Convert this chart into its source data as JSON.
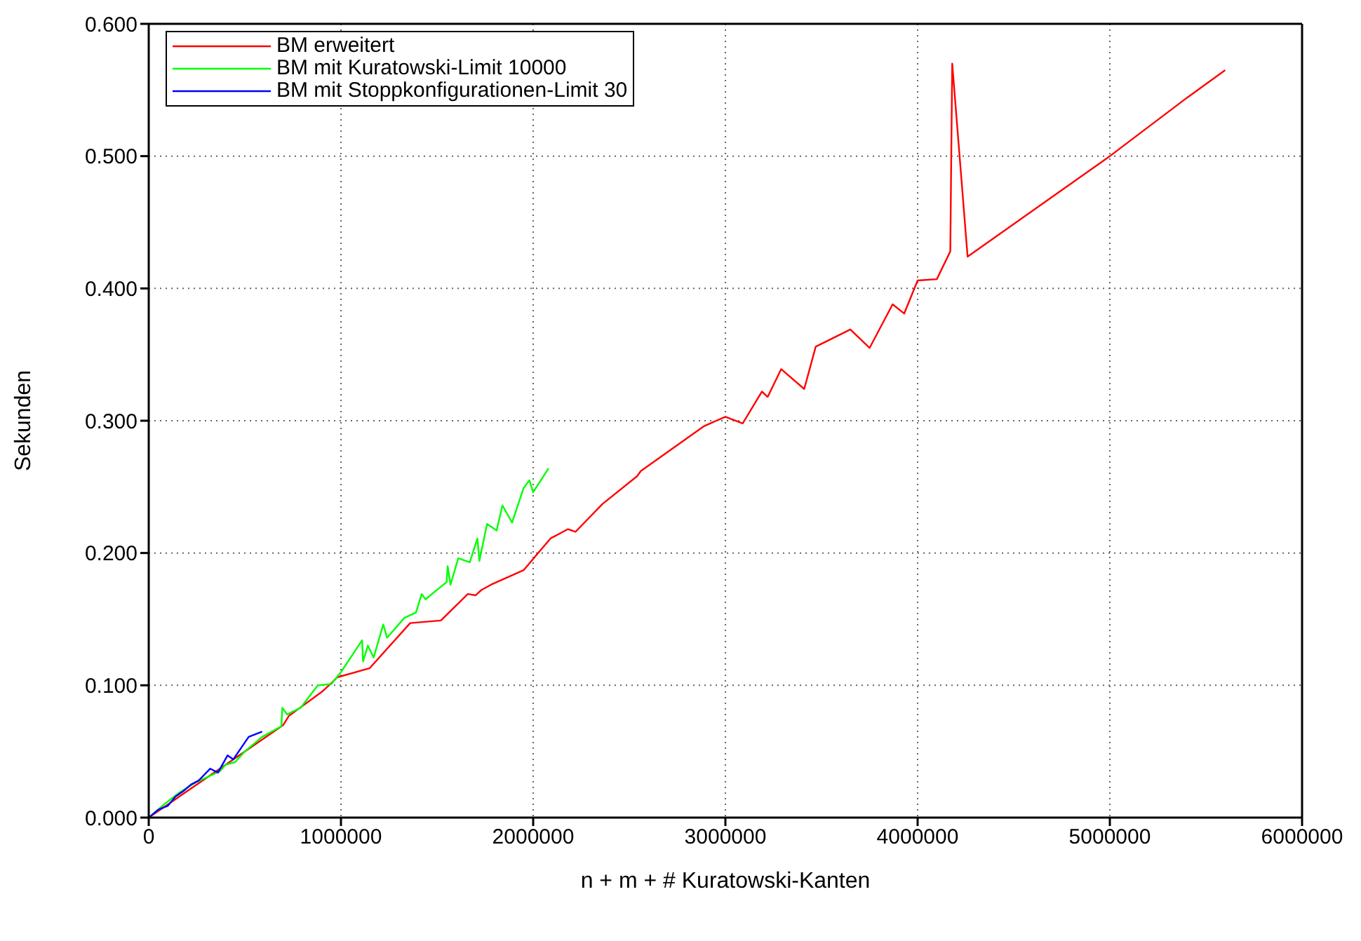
{
  "chart_data": {
    "type": "line",
    "xlabel": "n + m + # Kuratowski-Kanten",
    "ylabel": "Sekunden",
    "xlim": [
      0,
      6000000
    ],
    "xticks": [
      0,
      1000000,
      2000000,
      3000000,
      4000000,
      5000000,
      6000000
    ],
    "ylim": [
      0,
      0.6
    ],
    "yticks": [
      {
        "value": 0,
        "label": "0.000"
      },
      {
        "value": 0.1,
        "label": "0.100"
      },
      {
        "value": 0.2,
        "label": "0.200"
      },
      {
        "value": 0.3,
        "label": "0.300"
      },
      {
        "value": 0.4,
        "label": "0.400"
      },
      {
        "value": 0.5,
        "label": "0.500"
      },
      {
        "value": 0.6,
        "label": "0.600"
      }
    ],
    "grid": true,
    "legend": "top left",
    "marker": "none",
    "line_style": "solid",
    "series": [
      {
        "name": "BM erweitert",
        "color": "#ff0000",
        "x": [
          0,
          150000,
          300000,
          500000,
          700000,
          730000,
          900000,
          960000,
          980000,
          1150000,
          1360000,
          1520000,
          1660000,
          1700000,
          1730000,
          1780000,
          1950000,
          2090000,
          2180000,
          2220000,
          2360000,
          2540000,
          2560000,
          2890000,
          3000000,
          3090000,
          3190000,
          3220000,
          3290000,
          3410000,
          3470000,
          3650000,
          3750000,
          3870000,
          3930000,
          4000000,
          4100000,
          4170000,
          4180000,
          4260000,
          5000000,
          5400000,
          5600000
        ],
        "values": [
          0,
          0.015,
          0.03,
          0.05,
          0.07,
          0.077,
          0.095,
          0.103,
          0.106,
          0.113,
          0.147,
          0.149,
          0.169,
          0.168,
          0.172,
          0.176,
          0.187,
          0.211,
          0.218,
          0.216,
          0.237,
          0.258,
          0.262,
          0.296,
          0.303,
          0.298,
          0.322,
          0.318,
          0.339,
          0.324,
          0.356,
          0.369,
          0.355,
          0.388,
          0.381,
          0.406,
          0.407,
          0.428,
          0.57,
          0.424,
          0.5,
          0.544,
          0.565
        ]
      },
      {
        "name": "BM mit Kuratowski-Limit 10000",
        "color": "#00ff00",
        "x": [
          0,
          80000,
          160000,
          250000,
          370000,
          400000,
          450000,
          500000,
          590000,
          690000,
          695000,
          720000,
          790000,
          880000,
          950000,
          1000000,
          1110000,
          1115000,
          1140000,
          1170000,
          1220000,
          1240000,
          1330000,
          1390000,
          1420000,
          1440000,
          1490000,
          1550000,
          1555000,
          1570000,
          1610000,
          1670000,
          1710000,
          1720000,
          1760000,
          1810000,
          1840000,
          1890000,
          1950000,
          1980000,
          2000000,
          2080000
        ],
        "values": [
          0,
          0.01,
          0.019,
          0.027,
          0.035,
          0.04,
          0.042,
          0.05,
          0.061,
          0.069,
          0.083,
          0.078,
          0.083,
          0.1,
          0.101,
          0.11,
          0.134,
          0.118,
          0.13,
          0.121,
          0.146,
          0.136,
          0.151,
          0.155,
          0.169,
          0.165,
          0.171,
          0.178,
          0.19,
          0.176,
          0.196,
          0.193,
          0.211,
          0.194,
          0.222,
          0.217,
          0.236,
          0.223,
          0.249,
          0.255,
          0.246,
          0.264
        ]
      },
      {
        "name": "BM mit Stoppkonfigurationen-Limit 30",
        "color": "#0000ff",
        "x": [
          0,
          50000,
          100000,
          140000,
          180000,
          220000,
          260000,
          320000,
          360000,
          410000,
          440000,
          520000,
          590000
        ],
        "values": [
          0,
          0.006,
          0.009,
          0.016,
          0.02,
          0.025,
          0.028,
          0.037,
          0.034,
          0.047,
          0.044,
          0.061,
          0.065
        ]
      }
    ]
  }
}
